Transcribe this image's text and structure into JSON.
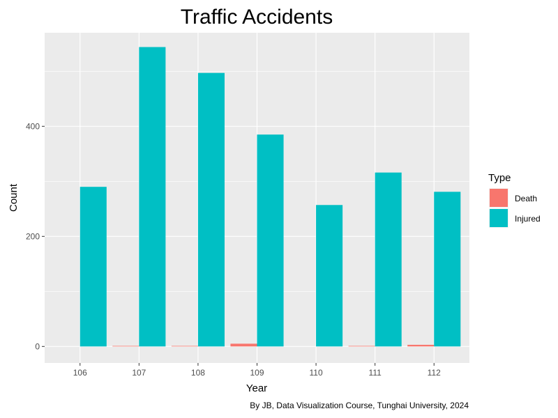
{
  "chart_data": {
    "type": "bar",
    "title": "Traffic Accidents",
    "xlabel": "Year",
    "ylabel": "Count",
    "caption": "By JB, Data Visualization Course, Tunghai University, 2024",
    "categories": [
      "106",
      "107",
      "108",
      "109",
      "110",
      "111",
      "112"
    ],
    "series": [
      {
        "name": "Death",
        "color": "#F8766D",
        "values": [
          0,
          1,
          1,
          5,
          0,
          1,
          3
        ]
      },
      {
        "name": "Injured",
        "color": "#00BFC4",
        "values": [
          290,
          544,
          497,
          385,
          257,
          316,
          281
        ]
      }
    ],
    "ylim": [
      -30,
      570
    ],
    "yticks": [
      0,
      200,
      400
    ],
    "grid": true,
    "legend": {
      "title": "Type",
      "position": "right"
    },
    "panel_background": "#EBEBEB"
  }
}
